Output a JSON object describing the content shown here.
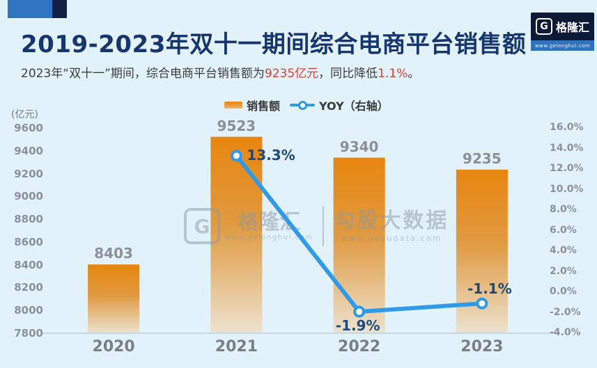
{
  "page": {
    "background": "#e2f2fb"
  },
  "header": {
    "title": "2019-2023年双十一期间综合电商平台销售额",
    "subtitle_part1": "2023年“双十一”期间，综合电商平台销售额为",
    "subtitle_value": "9235亿元",
    "subtitle_part2": "，同比降低",
    "subtitle_pct": "1.1%",
    "subtitle_end": "。"
  },
  "brand_logo": {
    "glyph": "G",
    "name": "格隆汇",
    "url": "www.gelonghui.com"
  },
  "watermark": {
    "glyph": "G",
    "brand": "格隆汇",
    "brand_url": "www.gelonghui.com",
    "product": "勾股大数据",
    "product_url": "www.gogudata.com"
  },
  "legend": {
    "bar_label": "销售额",
    "line_label": "YOY（右轴）"
  },
  "chart_data": {
    "type": "bar",
    "subtype": "bar+line dual axis",
    "title": "2019-2023年双十一期间综合电商平台销售额",
    "categories": [
      "2020",
      "2021",
      "2022",
      "2023"
    ],
    "series": [
      {
        "name": "销售额",
        "type": "bar",
        "axis": "left",
        "values": [
          8403,
          9523,
          9340,
          9235
        ]
      },
      {
        "name": "YOY（右轴）",
        "type": "line",
        "axis": "right",
        "values": [
          null,
          13.3,
          -1.9,
          -1.1
        ],
        "point_labels": [
          "",
          "13.3%",
          "-1.9%",
          "-1.1%"
        ]
      }
    ],
    "bar_value_labels": [
      "8403",
      "9523",
      "9340",
      "9235"
    ],
    "left_axis": {
      "title": "(亿元)",
      "min": 7800,
      "max": 9600,
      "step": 200,
      "tick_labels": [
        "9600",
        "9400",
        "9200",
        "9000",
        "8800",
        "8600",
        "8400",
        "8200",
        "8000",
        "7800"
      ]
    },
    "right_axis": {
      "min": -4,
      "max": 16,
      "step": 2,
      "tick_labels": [
        "16.0%",
        "14.0%",
        "12.0%",
        "10.0%",
        "8.0%",
        "6.0%",
        "4.0%",
        "2.0%",
        "0.0%",
        "-2.0%",
        "-4.0%"
      ]
    },
    "grid": false,
    "legend_position": "top-center",
    "colors": {
      "bar_top": "#e8860e",
      "bar_mid": "#e09a40",
      "bar_bottom": "#ece2cf",
      "line": "#2f9ae8",
      "bar_label": "#8a9096",
      "line_label": "#1c4a7e",
      "tick": "#8b9198",
      "x_label": "#7a7f85",
      "title": "#16366f",
      "highlight": "#e83a2f",
      "background": "#e2f2fb"
    }
  }
}
